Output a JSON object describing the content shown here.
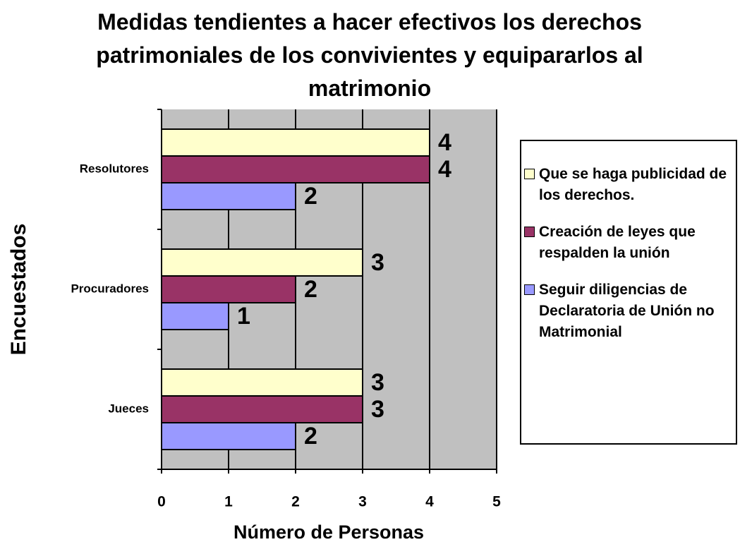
{
  "chart_data": {
    "type": "bar",
    "orientation": "horizontal",
    "title": "Medidas tendientes a hacer efectivos los derechos patrimoniales de los convivientes y equipararlos al matrimonio",
    "xlabel": "Número de Personas",
    "ylabel": "Encuestados",
    "categories": [
      "Jueces",
      "Procuradores",
      "Resolutores"
    ],
    "series": [
      {
        "name": "Que se haga publicidad de los derechos.",
        "color": "#ffffcc",
        "values": [
          3,
          3,
          4
        ]
      },
      {
        "name": "Creación de leyes que respalden la unión",
        "color": "#993366",
        "values": [
          3,
          2,
          4
        ]
      },
      {
        "name": "Seguir diligencias de Declaratoria de Unión no Matrimonial",
        "color": "#9999ff",
        "values": [
          2,
          1,
          2
        ]
      }
    ],
    "xlim": [
      0,
      5
    ],
    "xticks": [
      0,
      1,
      2,
      3,
      4,
      5
    ],
    "grid": true,
    "legend": "right"
  }
}
